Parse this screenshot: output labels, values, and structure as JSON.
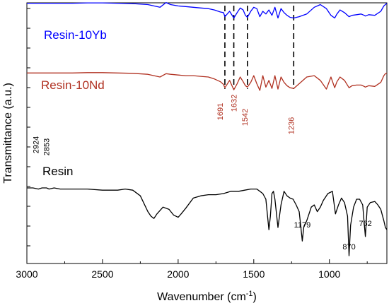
{
  "chart_data": {
    "type": "line",
    "xlabel": "Wavenumber (cm",
    "xlabel_sup": "-1",
    "xlabel_suffix": ")",
    "ylabel": "Transmittance (a.u.)",
    "xlim": [
      3000,
      620
    ],
    "x_ticks": [
      3000,
      2500,
      2000,
      1500,
      1000
    ],
    "grid": false,
    "legend": "none",
    "series": [
      {
        "name": "Resin-10Yb",
        "color": "#0000ff",
        "x": [
          3000,
          2900,
          2800,
          2700,
          2600,
          2500,
          2400,
          2300,
          2200,
          2120,
          2080,
          2050,
          2000,
          1950,
          1900,
          1850,
          1800,
          1760,
          1720,
          1700,
          1691,
          1660,
          1632,
          1610,
          1590,
          1570,
          1555,
          1542,
          1520,
          1500,
          1480,
          1460,
          1440,
          1420,
          1400,
          1380,
          1360,
          1340,
          1320,
          1300,
          1280,
          1260,
          1236,
          1200,
          1150,
          1100,
          1060,
          1020,
          990,
          965,
          950,
          930,
          900,
          870,
          850,
          820,
          790,
          770,
          762,
          740,
          700,
          660,
          640,
          630,
          620
        ],
        "y": [
          0.92,
          0.92,
          0.92,
          0.92,
          0.925,
          0.925,
          0.92,
          0.915,
          0.9,
          0.86,
          0.93,
          0.9,
          0.88,
          0.87,
          0.86,
          0.85,
          0.84,
          0.82,
          0.79,
          0.78,
          0.72,
          0.8,
          0.7,
          0.78,
          0.85,
          0.82,
          0.74,
          0.71,
          0.8,
          0.86,
          0.84,
          0.72,
          0.8,
          0.76,
          0.82,
          0.74,
          0.86,
          0.7,
          0.84,
          0.78,
          0.74,
          0.71,
          0.7,
          0.72,
          0.76,
          0.86,
          0.9,
          0.84,
          0.74,
          0.7,
          0.76,
          0.82,
          0.78,
          0.72,
          0.74,
          0.75,
          0.76,
          0.74,
          0.73,
          0.75,
          0.74,
          0.8,
          0.88,
          0.9,
          0.92
        ]
      },
      {
        "name": "Resin-10Nd",
        "color": "#b03020",
        "x": [
          3000,
          2900,
          2800,
          2700,
          2600,
          2500,
          2400,
          2300,
          2200,
          2120,
          2080,
          2050,
          2000,
          1950,
          1900,
          1850,
          1800,
          1760,
          1720,
          1700,
          1691,
          1660,
          1632,
          1610,
          1590,
          1570,
          1555,
          1542,
          1520,
          1500,
          1480,
          1460,
          1440,
          1420,
          1400,
          1380,
          1360,
          1340,
          1320,
          1300,
          1280,
          1260,
          1236,
          1200,
          1150,
          1100,
          1060,
          1020,
          990,
          965,
          950,
          930,
          900,
          870,
          850,
          820,
          790,
          770,
          762,
          740,
          700,
          660,
          640,
          630,
          620
        ],
        "y": [
          0.66,
          0.66,
          0.66,
          0.66,
          0.665,
          0.665,
          0.66,
          0.655,
          0.64,
          0.6,
          0.65,
          0.64,
          0.63,
          0.62,
          0.62,
          0.61,
          0.6,
          0.57,
          0.53,
          0.49,
          0.44,
          0.55,
          0.41,
          0.5,
          0.6,
          0.53,
          0.47,
          0.45,
          0.52,
          0.62,
          0.5,
          0.4,
          0.62,
          0.45,
          0.55,
          0.43,
          0.62,
          0.42,
          0.6,
          0.52,
          0.47,
          0.44,
          0.43,
          0.5,
          0.6,
          0.62,
          0.55,
          0.42,
          0.6,
          0.44,
          0.53,
          0.6,
          0.55,
          0.44,
          0.47,
          0.48,
          0.48,
          0.46,
          0.45,
          0.47,
          0.46,
          0.52,
          0.62,
          0.65,
          0.66
        ]
      },
      {
        "name": "Resin",
        "color": "#000000",
        "x": [
          3000,
          2960,
          2924,
          2900,
          2870,
          2853,
          2820,
          2780,
          2700,
          2600,
          2500,
          2400,
          2350,
          2300,
          2250,
          2200,
          2180,
          2160,
          2140,
          2100,
          2060,
          2030,
          2000,
          1980,
          1950,
          1900,
          1850,
          1800,
          1750,
          1700,
          1650,
          1600,
          1560,
          1520,
          1480,
          1460,
          1440,
          1420,
          1400,
          1390,
          1380,
          1370,
          1360,
          1340,
          1320,
          1300,
          1280,
          1260,
          1240,
          1220,
          1200,
          1190,
          1179,
          1170,
          1150,
          1120,
          1100,
          1080,
          1060,
          1040,
          1010,
          980,
          960,
          940,
          920,
          900,
          880,
          870,
          860,
          840,
          820,
          800,
          780,
          770,
          762,
          750,
          730,
          700,
          680,
          660,
          640,
          630,
          620
        ],
        "y": [
          0.45,
          0.45,
          0.44,
          0.45,
          0.45,
          0.44,
          0.45,
          0.44,
          0.44,
          0.44,
          0.43,
          0.43,
          0.44,
          0.43,
          0.38,
          0.24,
          0.2,
          0.18,
          0.22,
          0.28,
          0.26,
          0.21,
          0.19,
          0.22,
          0.27,
          0.36,
          0.38,
          0.39,
          0.39,
          0.4,
          0.42,
          0.42,
          0.43,
          0.44,
          0.44,
          0.42,
          0.4,
          0.35,
          0.08,
          0.2,
          0.4,
          0.42,
          0.35,
          0.1,
          0.3,
          0.42,
          0.38,
          0.36,
          0.35,
          0.3,
          0.24,
          0.12,
          -0.02,
          0.1,
          0.16,
          0.28,
          0.3,
          0.24,
          0.28,
          0.34,
          0.4,
          0.42,
          0.22,
          0.3,
          0.36,
          0.32,
          0.2,
          -0.15,
          0.12,
          0.28,
          0.35,
          0.35,
          0.3,
          0.14,
          0.02,
          0.28,
          0.32,
          0.33,
          0.3,
          0.26,
          0.16,
          0.1,
          0.08
        ]
      }
    ],
    "series_labels": [
      "Resin-10Yb",
      "Resin-10Nd",
      "Resin"
    ],
    "reference_lines_x": [
      1691,
      1632,
      1542,
      1236
    ],
    "peak_labels": [
      {
        "text": "2924",
        "series": "Resin"
      },
      {
        "text": "2853",
        "series": "Resin"
      },
      {
        "text": "1691",
        "series": "Resin-10Nd"
      },
      {
        "text": "1632",
        "series": "Resin-10Nd"
      },
      {
        "text": "1542",
        "series": "Resin-10Nd"
      },
      {
        "text": "1236",
        "series": "Resin-10Nd"
      },
      {
        "text": "1179",
        "series": "Resin"
      },
      {
        "text": "870",
        "series": "Resin"
      },
      {
        "text": "762",
        "series": "Resin"
      }
    ]
  }
}
